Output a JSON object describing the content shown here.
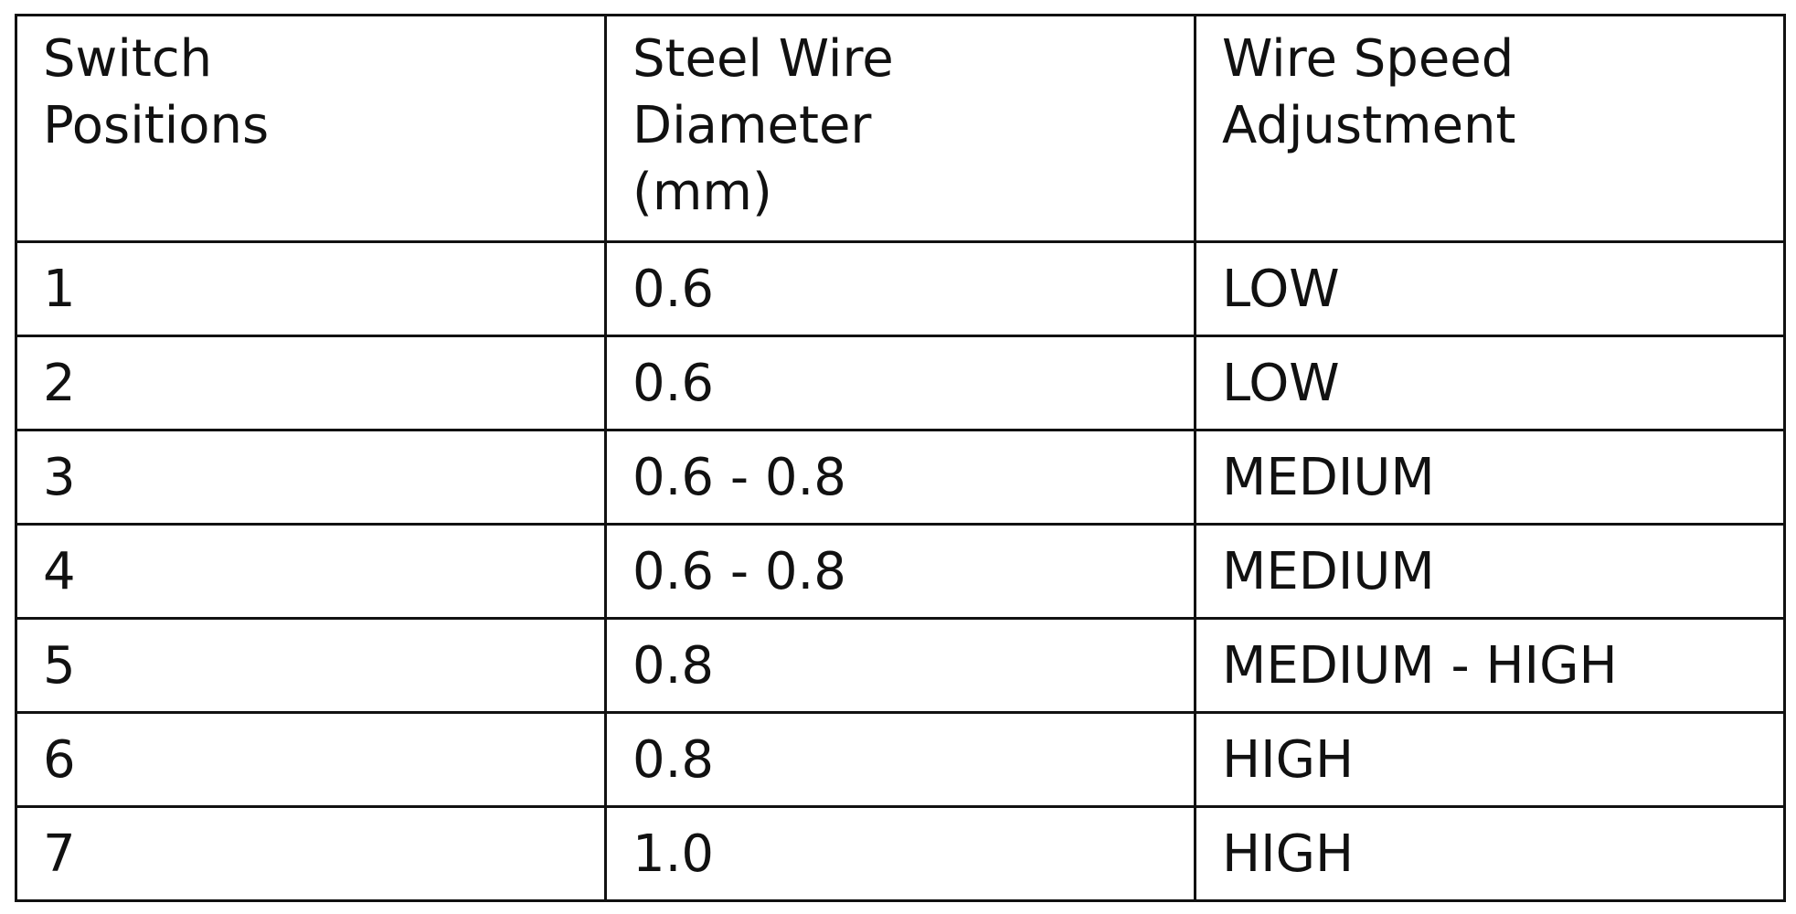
{
  "table": {
    "header": [
      "Switch\nPositions",
      "Steel Wire\nDiameter\n(mm)",
      "Wire Speed\nAdjustment"
    ],
    "rows": [
      [
        "1",
        "0.6",
        "LOW"
      ],
      [
        "2",
        "0.6",
        "LOW"
      ],
      [
        "3",
        "0.6 - 0.8",
        "MEDIUM"
      ],
      [
        "4",
        "0.6 - 0.8",
        "MEDIUM"
      ],
      [
        "5",
        "0.8",
        "MEDIUM - HIGH"
      ],
      [
        "6",
        "0.8",
        "HIGH"
      ],
      [
        "7",
        "1.0",
        "HIGH"
      ]
    ]
  }
}
